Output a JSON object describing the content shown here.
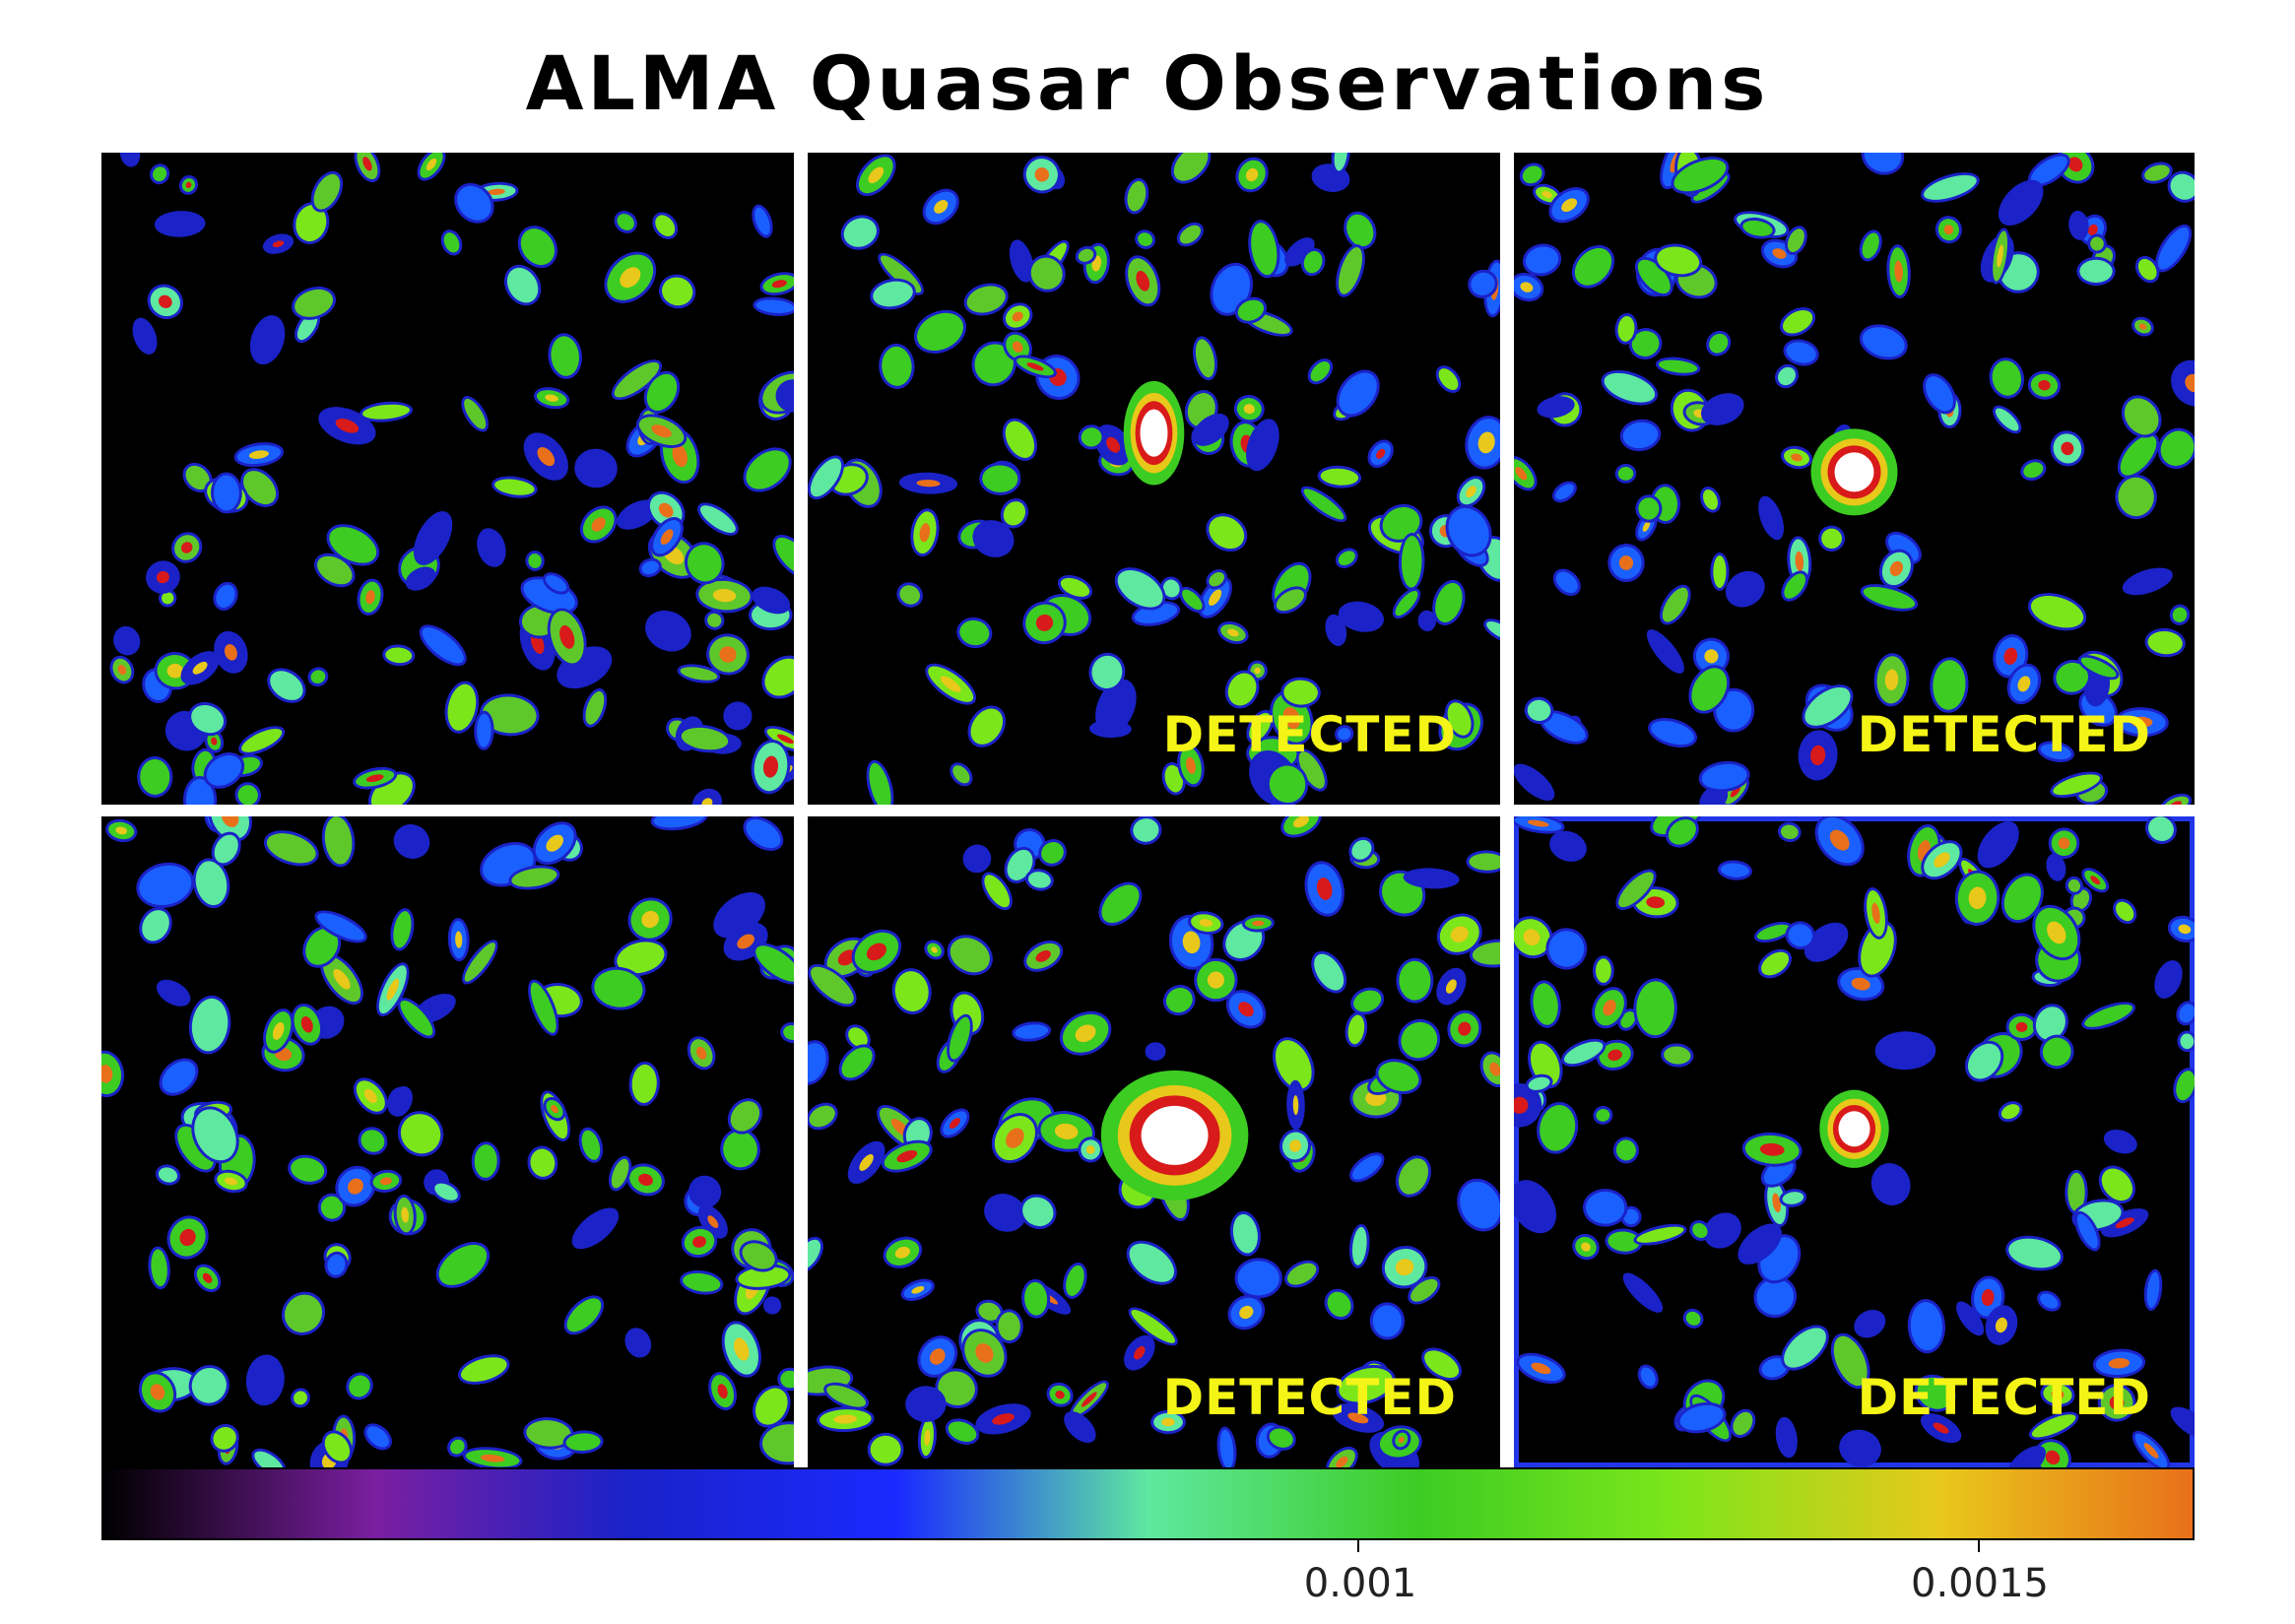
{
  "title": "ALMA Quasar Observations",
  "panels": [
    {
      "id": 1,
      "detected_label": "",
      "selected": false
    },
    {
      "id": 2,
      "detected_label": "DETECTED",
      "selected": false
    },
    {
      "id": 3,
      "detected_label": "DETECTED",
      "selected": false
    },
    {
      "id": 4,
      "detected_label": "",
      "selected": false
    },
    {
      "id": 5,
      "detected_label": "DETECTED",
      "selected": false
    },
    {
      "id": 6,
      "detected_label": "DETECTED",
      "selected": true
    }
  ],
  "colorbar": {
    "colors": [
      "#000000",
      "#7a1fa0",
      "#1a22c8",
      "#1a2aff",
      "#5ee8a0",
      "#3ccc22",
      "#7be61a",
      "#e8c81a",
      "#e8701a"
    ],
    "ticks": [
      {
        "label": "0.001",
        "value": 0.001
      },
      {
        "label": "0.0015",
        "value": 0.0015
      }
    ]
  },
  "accent": "#2236e8",
  "label_color": "#f4f416"
}
